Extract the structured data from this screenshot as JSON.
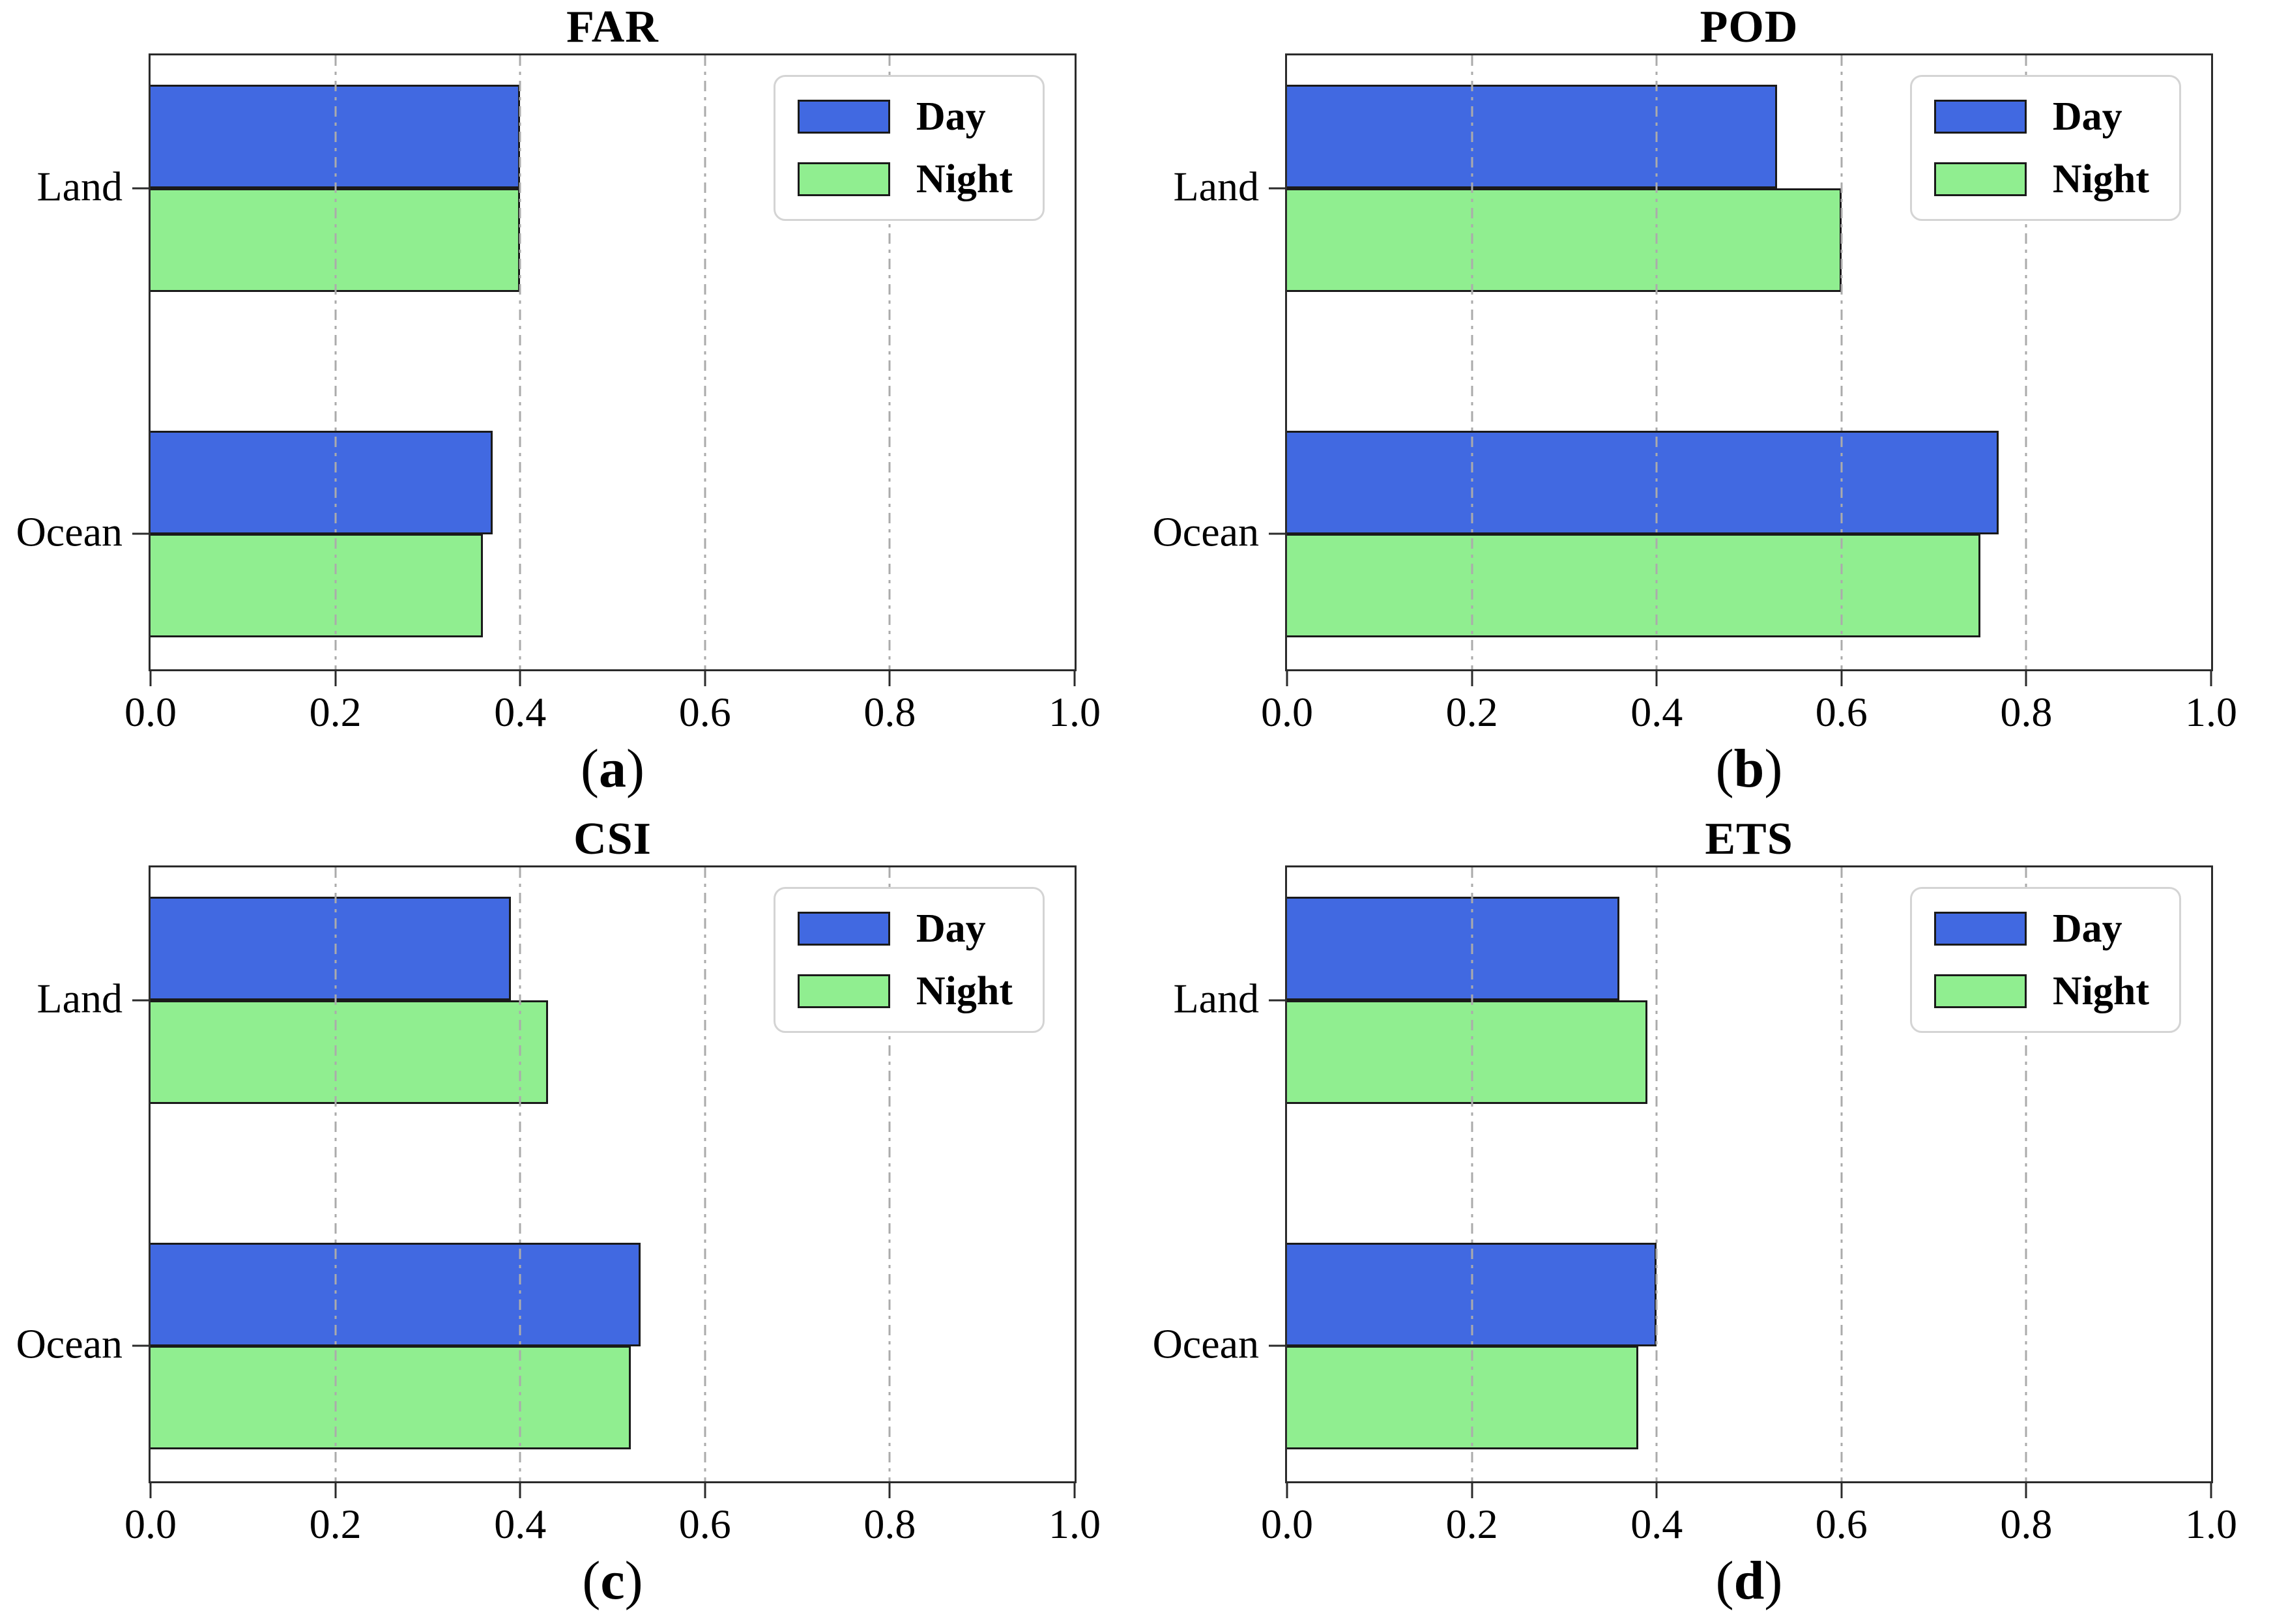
{
  "figure": {
    "background": "#ffffff",
    "layout": "2x2 grid of horizontal bar charts",
    "colors": {
      "day": "#4169E1",
      "night": "#90EE90",
      "bar_edge": "#1a1a1a",
      "grid": "#ababab",
      "spine": "#2b2b2b",
      "legend_border": "#d4d4d4"
    }
  },
  "legend": {
    "position": "upper right",
    "items": [
      {
        "label": "Day",
        "color": "#4169E1"
      },
      {
        "label": "Night",
        "color": "#90EE90"
      }
    ]
  },
  "chart_data": [
    {
      "type": "bar",
      "orientation": "horizontal",
      "title": "FAR",
      "caption_prefix": "(",
      "caption_letter": "a",
      "caption_suffix": ")",
      "categories": [
        "Land",
        "Ocean"
      ],
      "series": [
        {
          "name": "Day",
          "color": "#4169E1",
          "values": [
            0.4,
            0.37
          ]
        },
        {
          "name": "Night",
          "color": "#90EE90",
          "values": [
            0.4,
            0.36
          ]
        }
      ],
      "xlim": [
        0,
        1
      ],
      "xticks": [
        "0.0",
        "0.2",
        "0.4",
        "0.6",
        "0.8",
        "1.0"
      ],
      "grid": "vertical dash-dot at 0.2 intervals",
      "legend_position": "upper right"
    },
    {
      "type": "bar",
      "orientation": "horizontal",
      "title": "POD",
      "caption_prefix": "(",
      "caption_letter": "b",
      "caption_suffix": ")",
      "categories": [
        "Land",
        "Ocean"
      ],
      "series": [
        {
          "name": "Day",
          "color": "#4169E1",
          "values": [
            0.53,
            0.77
          ]
        },
        {
          "name": "Night",
          "color": "#90EE90",
          "values": [
            0.6,
            0.75
          ]
        }
      ],
      "xlim": [
        0,
        1
      ],
      "xticks": [
        "0.0",
        "0.2",
        "0.4",
        "0.6",
        "0.8",
        "1.0"
      ],
      "grid": "vertical dash-dot at 0.2 intervals",
      "legend_position": "upper right"
    },
    {
      "type": "bar",
      "orientation": "horizontal",
      "title": "CSI",
      "caption_prefix": "(",
      "caption_letter": "c",
      "caption_suffix": ")",
      "categories": [
        "Land",
        "Ocean"
      ],
      "series": [
        {
          "name": "Day",
          "color": "#4169E1",
          "values": [
            0.39,
            0.53
          ]
        },
        {
          "name": "Night",
          "color": "#90EE90",
          "values": [
            0.43,
            0.52
          ]
        }
      ],
      "xlim": [
        0,
        1
      ],
      "xticks": [
        "0.0",
        "0.2",
        "0.4",
        "0.6",
        "0.8",
        "1.0"
      ],
      "grid": "vertical dash-dot at 0.2 intervals",
      "legend_position": "upper right"
    },
    {
      "type": "bar",
      "orientation": "horizontal",
      "title": "ETS",
      "caption_prefix": "(",
      "caption_letter": "d",
      "caption_suffix": ")",
      "categories": [
        "Land",
        "Ocean"
      ],
      "series": [
        {
          "name": "Day",
          "color": "#4169E1",
          "values": [
            0.36,
            0.4
          ]
        },
        {
          "name": "Night",
          "color": "#90EE90",
          "values": [
            0.39,
            0.38
          ]
        }
      ],
      "xlim": [
        0,
        1
      ],
      "xticks": [
        "0.0",
        "0.2",
        "0.4",
        "0.6",
        "0.8",
        "1.0"
      ],
      "grid": "vertical dash-dot at 0.2 intervals",
      "legend_position": "upper right"
    }
  ],
  "layout_hints": {
    "bar_top_percent_by_category_and_series": [
      [
        4.75,
        21.62
      ],
      [
        61.18,
        77.95
      ]
    ],
    "category_center_percent": [
      21.62,
      77.95
    ],
    "gridline_ticks_percent": [
      20,
      40,
      60,
      80
    ]
  }
}
